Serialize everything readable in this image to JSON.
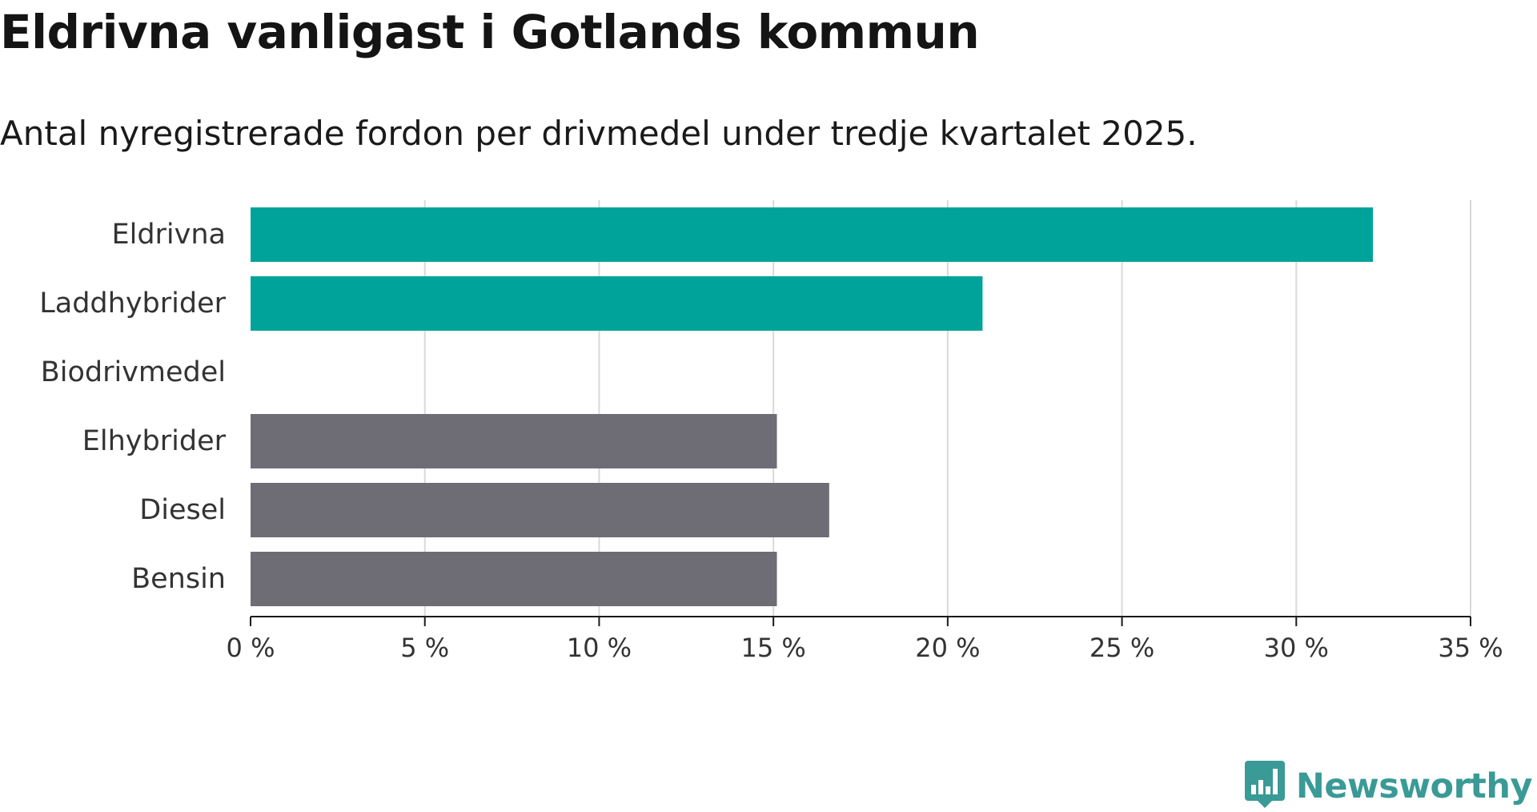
{
  "colors": {
    "highlight": "#00a39a",
    "neutral": "#6e6d76",
    "grid": "#d9d9d9",
    "axis": "#1a1a1a",
    "brand": "#3a9a96"
  },
  "chart_data": {
    "type": "bar",
    "orientation": "horizontal",
    "title": "Eldrivna vanligast i Gotlands kommun",
    "subtitle": "Antal nyregistrerade fordon per drivmedel under tredje kvartalet 2025.",
    "xlabel": "",
    "ylabel": "",
    "xlim": [
      0,
      35
    ],
    "grid": true,
    "categories": [
      "Eldrivna",
      "Laddhybrider",
      "Biodrivmedel",
      "Elhybrider",
      "Diesel",
      "Bensin"
    ],
    "values": [
      32.2,
      21.0,
      0,
      15.1,
      16.6,
      15.1
    ],
    "highlighted": [
      true,
      true,
      true,
      false,
      false,
      false
    ],
    "ticks": [
      0,
      5,
      10,
      15,
      20,
      25,
      30,
      35
    ],
    "tick_labels": [
      "0 %",
      "5 %",
      "10 %",
      "15 %",
      "20 %",
      "25 %",
      "30 %",
      "35 %"
    ]
  },
  "brand": {
    "name": "Newsworthy",
    "icon": "newsworthy-logo-icon"
  }
}
